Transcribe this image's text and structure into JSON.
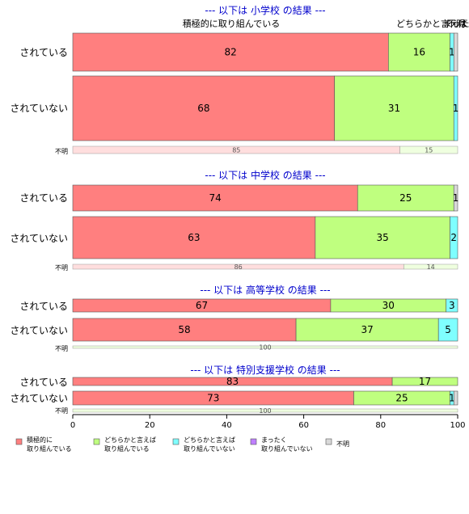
{
  "chart_data": {
    "type": "bar",
    "orientation": "horizontal",
    "stacked": true,
    "xlim": [
      0,
      100
    ],
    "x_ticks": [
      "0",
      "20",
      "40",
      "60",
      "80",
      "100"
    ],
    "top_labels": [
      "積極的に取り組んでいる",
      "どちらかと言えば",
      "まったく",
      "不明"
    ],
    "series_names": [
      "積極的に取り組んでいる",
      "どちらかと言えば取り組んでいる",
      "どちらかと言えば取り組んでいない",
      "まったく取り組んでいない",
      "不明"
    ],
    "colors": [
      "#ff7f7f",
      "#bfff7f",
      "#7fffff",
      "#bf7fff",
      "#d9d9d9"
    ],
    "legend": [
      {
        "line1": "積極的に",
        "line2": "取り組んでいる",
        "color": "#ff7f7f"
      },
      {
        "line1": "どちらかと言えば",
        "line2": "取り組んでいる",
        "color": "#bfff7f"
      },
      {
        "line1": "どちらかと言えば",
        "line2": "取り組んでいない",
        "color": "#7fffff"
      },
      {
        "line1": "まったく",
        "line2": "取り組んでいない",
        "color": "#bf7fff"
      },
      {
        "line1": "不明",
        "line2": "",
        "color": "#d9d9d9"
      }
    ],
    "panels": [
      {
        "header": "--- 以下は 小学校 の結果 ---",
        "rows": [
          {
            "label": "されている",
            "values": [
              82,
              16,
              1,
              0,
              1
            ],
            "labels": [
              "82",
              "16",
              "1",
              "",
              ""
            ]
          },
          {
            "label": "されていない",
            "values": [
              68,
              31,
              1,
              0,
              0
            ],
            "labels": [
              "68",
              "31",
              "1",
              "",
              ""
            ]
          }
        ],
        "unknown": {
          "label": "不明",
          "values": [
            85,
            15,
            0,
            0,
            0
          ],
          "labels": [
            "85",
            "15",
            "",
            "",
            ""
          ]
        }
      },
      {
        "header": "--- 以下は 中学校 の結果 ---",
        "rows": [
          {
            "label": "されている",
            "values": [
              74,
              25,
              0,
              0,
              1
            ],
            "labels": [
              "74",
              "25",
              "",
              "",
              "1"
            ]
          },
          {
            "label": "されていない",
            "values": [
              63,
              35,
              2,
              0,
              0
            ],
            "labels": [
              "63",
              "35",
              "2",
              "",
              ""
            ]
          }
        ],
        "unknown": {
          "label": "不明",
          "values": [
            86,
            14,
            0,
            0,
            0
          ],
          "labels": [
            "86",
            "14",
            "",
            "",
            ""
          ]
        }
      },
      {
        "header": "--- 以下は 高等学校 の結果 ---",
        "rows": [
          {
            "label": "されている",
            "values": [
              67,
              30,
              3,
              0,
              0
            ],
            "labels": [
              "67",
              "30",
              "3",
              "",
              ""
            ]
          },
          {
            "label": "されていない",
            "values": [
              58,
              37,
              5,
              0,
              0
            ],
            "labels": [
              "58",
              "37",
              "5",
              "",
              ""
            ]
          }
        ],
        "unknown": {
          "label": "不明",
          "values": [
            0,
            100,
            0,
            0,
            0
          ],
          "labels": [
            "",
            "100",
            "",
            "",
            ""
          ]
        }
      },
      {
        "header": "--- 以下は 特別支援学校 の結果 ---",
        "rows": [
          {
            "label": "されている",
            "values": [
              83,
              17,
              0,
              0,
              0
            ],
            "labels": [
              "83",
              "17",
              "",
              "",
              ""
            ]
          },
          {
            "label": "されていない",
            "values": [
              73,
              25,
              1,
              0,
              1
            ],
            "labels": [
              "73",
              "25",
              "1",
              "",
              ""
            ]
          }
        ],
        "unknown": {
          "label": "不明",
          "values": [
            0,
            100,
            0,
            0,
            0
          ],
          "labels": [
            "",
            "100",
            "",
            "",
            ""
          ]
        }
      }
    ]
  }
}
